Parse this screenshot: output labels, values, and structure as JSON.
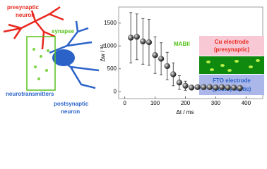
{
  "chart_data": {
    "type": "scatter",
    "xlabel": "Δt / ms",
    "ylabel": "Δw / %",
    "annotation": "MABII",
    "x": [
      20,
      40,
      60,
      80,
      100,
      120,
      140,
      160,
      180,
      200,
      220,
      240,
      260,
      280,
      300,
      320,
      340,
      360,
      380
    ],
    "values": [
      1180,
      1200,
      1100,
      1080,
      800,
      720,
      560,
      380,
      200,
      130,
      90,
      100,
      100,
      100,
      90,
      100,
      90,
      90,
      80
    ],
    "errors": [
      550,
      500,
      500,
      500,
      400,
      350,
      300,
      250,
      150,
      100,
      50,
      50,
      50,
      50,
      50,
      50,
      50,
      50,
      50
    ],
    "color": "#333333",
    "xlim": [
      -20,
      420
    ],
    "xticks": [
      0,
      100,
      200,
      300,
      400
    ],
    "ylim": [
      -150,
      1850
    ],
    "yticks": [
      0,
      500,
      1000,
      1500
    ]
  },
  "illustration": {
    "presynaptic": [
      "presynaptic",
      "neuron"
    ],
    "synapse": "synapse",
    "neurotransmitters": "neurotransmitters",
    "postsynaptic": [
      "postsynaptic",
      "neuron"
    ],
    "electrodes": [
      {
        "name": "Cu electrode",
        "role": "(presynaptic)"
      },
      {
        "name": "FTO electrode",
        "role": "(postsynaptic)"
      }
    ]
  }
}
